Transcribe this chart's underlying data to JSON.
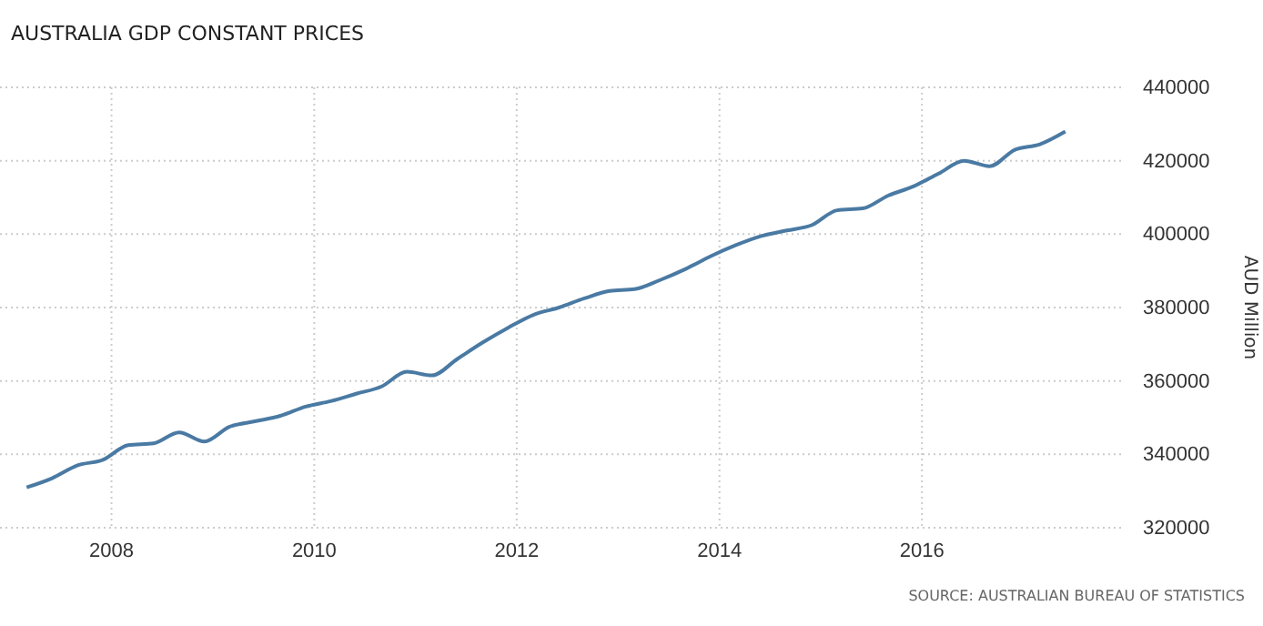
{
  "chart_data": {
    "type": "line",
    "title": "AUSTRALIA GDP CONSTANT PRICES",
    "ylabel": "AUD Million",
    "annotations": [
      "SOURCE: AUSTRALIAN BUREAU OF STATISTICS"
    ],
    "x": [
      "2007-03",
      "2007-06",
      "2007-09",
      "2007-12",
      "2008-03",
      "2008-06",
      "2008-09",
      "2008-12",
      "2009-03",
      "2009-06",
      "2009-09",
      "2009-12",
      "2010-03",
      "2010-06",
      "2010-09",
      "2010-12",
      "2011-03",
      "2011-06",
      "2011-09",
      "2011-12",
      "2012-03",
      "2012-06",
      "2012-09",
      "2012-12",
      "2013-03",
      "2013-06",
      "2013-09",
      "2013-12",
      "2014-03",
      "2014-06",
      "2014-09",
      "2014-12",
      "2015-03",
      "2015-06",
      "2015-09",
      "2015-12",
      "2016-03",
      "2016-06",
      "2016-09",
      "2016-12",
      "2017-03",
      "2017-06"
    ],
    "series": [
      {
        "color": "#4a7aa3",
        "values": [
          331000,
          333500,
          337000,
          338500,
          342500,
          343000,
          346000,
          343500,
          347500,
          349000,
          350500,
          353000,
          354500,
          356500,
          358500,
          362500,
          361500,
          366000,
          370500,
          374500,
          378000,
          380000,
          382500,
          384500,
          385000,
          387500,
          390500,
          394000,
          397000,
          399500,
          401000,
          402500,
          406500,
          407000,
          410500,
          413000,
          416500,
          420000,
          418500,
          423000,
          424500,
          428000
        ]
      }
    ],
    "xlim": [
      "2006-11-25",
      "2018-01-01"
    ],
    "xticks": [
      {
        "value": "2008",
        "label": "2008"
      },
      {
        "value": "2010",
        "label": "2010"
      },
      {
        "value": "2012",
        "label": "2012"
      },
      {
        "value": "2014",
        "label": "2014"
      },
      {
        "value": "2016",
        "label": "2016"
      }
    ],
    "ylim": [
      320000,
      440000
    ],
    "yticks": [
      320000,
      340000,
      360000,
      380000,
      400000,
      420000,
      440000
    ],
    "grid": true,
    "line_style": "solid",
    "marker": "none"
  }
}
